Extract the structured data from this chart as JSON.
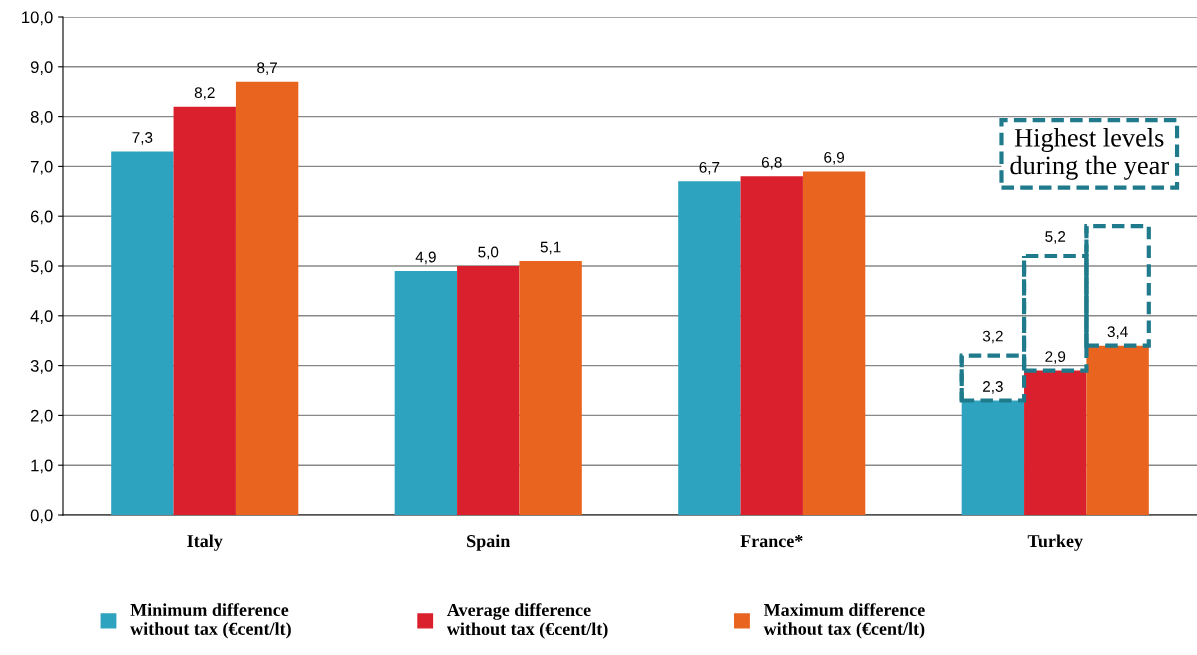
{
  "chart_data": {
    "type": "bar",
    "categories": [
      "Italy",
      "Spain",
      "France*",
      "Turkey"
    ],
    "series": [
      {
        "name": "Minimum difference\nwithout tax (€cent/lt)",
        "color": "#2ea3bf",
        "values": [
          7.3,
          4.9,
          6.7,
          2.3
        ],
        "value_labels": [
          "7,3",
          "4,9",
          "6,7",
          "2,3"
        ],
        "errors": [
          null,
          null,
          null,
          [
            2.3,
            3.2
          ]
        ]
      },
      {
        "name": "Average difference\nwithout tax (€cent/lt)",
        "color": "#d9202c",
        "values": [
          8.2,
          5.0,
          6.8,
          2.9
        ],
        "value_labels": [
          "8,2",
          "5,0",
          "6,8",
          "2,9"
        ],
        "errors": [
          null,
          null,
          null,
          [
            2.9,
            5.2
          ]
        ]
      },
      {
        "name": "Maximum difference\nwithout tax (€cent/lt)",
        "color": "#e8641f",
        "values": [
          8.7,
          5.1,
          6.9,
          3.4
        ],
        "value_labels": [
          "8,7",
          "5,1",
          "6,9",
          "3,4"
        ],
        "errors": [
          null,
          null,
          null,
          [
            3.4,
            5.8
          ]
        ]
      }
    ],
    "ylim": [
      0,
      10
    ],
    "yticks": [
      {
        "value": 0,
        "label": "0,0"
      },
      {
        "value": 1,
        "label": "1,0"
      },
      {
        "value": 2,
        "label": "2,0"
      },
      {
        "value": 3,
        "label": "3,0"
      },
      {
        "value": 4,
        "label": "4,0"
      },
      {
        "value": 5,
        "label": "5,0"
      },
      {
        "value": 6,
        "label": "6,0"
      },
      {
        "value": 7,
        "label": "7,0"
      },
      {
        "value": 8,
        "label": "8,0"
      },
      {
        "value": 9,
        "label": "9,0"
      },
      {
        "value": 10,
        "label": "10,0"
      }
    ],
    "grid": "y",
    "legend": "bottom",
    "annotations": [
      "3,2",
      "5,2",
      "Highest levels\nduring the year"
    ]
  }
}
